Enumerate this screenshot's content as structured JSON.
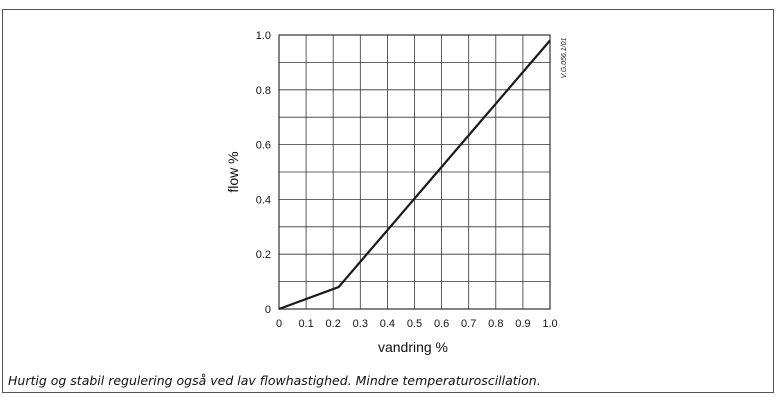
{
  "chart_data": {
    "type": "line",
    "title": "",
    "xlabel": "vandring %",
    "ylabel": "flow %",
    "xlim": [
      0,
      1.0
    ],
    "ylim": [
      0,
      1.0
    ],
    "x_ticks": [
      "0",
      "0.1",
      "0.2",
      "0.3",
      "0.4",
      "0.5",
      "0.6",
      "0.7",
      "0.8",
      "0.9",
      "1.0"
    ],
    "y_ticks": [
      "0",
      "0.2",
      "0.4",
      "0.6",
      "0.8",
      "1.0"
    ],
    "grid": true,
    "x_grid_step": 0.1,
    "y_grid_step": 0.1,
    "series": [
      {
        "x": [
          0,
          0.22,
          1.0
        ],
        "y": [
          0,
          0.08,
          0.98
        ]
      }
    ],
    "code_mark": "V.G.056.1/01"
  },
  "caption": "Hurtig og stabil regulering også ved lav flowhastighed. Mindre temperaturoscillation.",
  "colors": {
    "line": "#1a1a1a",
    "grid": "#333333",
    "text": "#111111"
  }
}
